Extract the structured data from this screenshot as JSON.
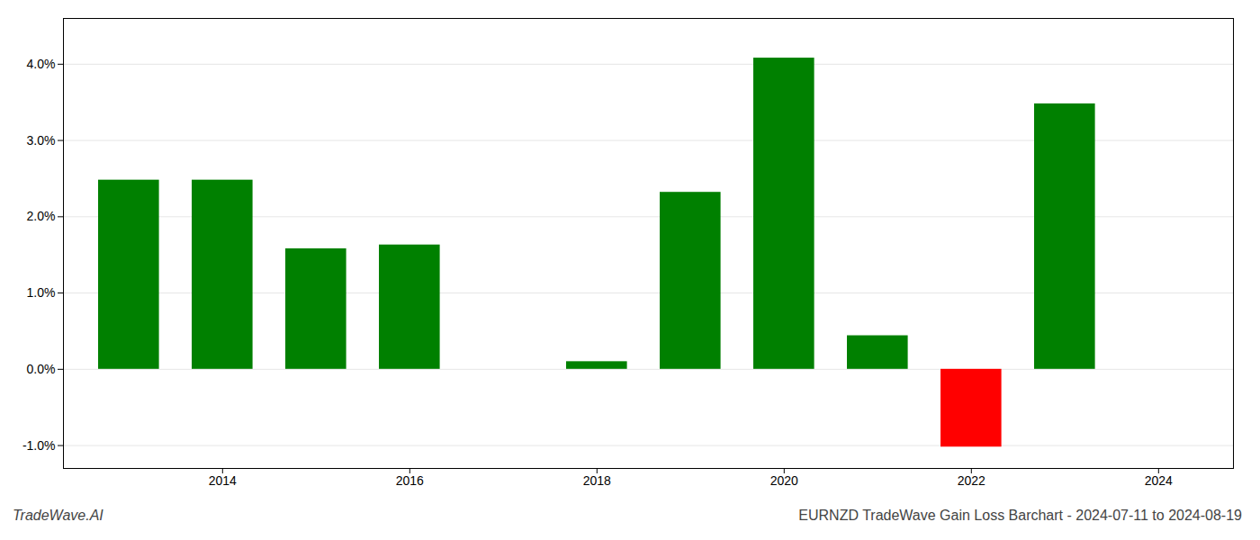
{
  "chart_data": {
    "type": "bar",
    "title": "EURNZD TradeWave Gain Loss Barchart - 2024-07-11 to 2024-08-19",
    "annotations": [
      "TradeWave.AI"
    ],
    "x": [
      2013,
      2014,
      2015,
      2016,
      2018,
      2019,
      2020,
      2021,
      2022,
      2023
    ],
    "values": [
      0.0248,
      0.0248,
      0.0158,
      0.0163,
      0.001,
      0.0232,
      0.0408,
      0.0044,
      -0.0102,
      0.0348
    ],
    "colors": [
      "#008000",
      "#008000",
      "#008000",
      "#008000",
      "#008000",
      "#008000",
      "#008000",
      "#008000",
      "#ff0000",
      "#008000"
    ],
    "xlim": [
      2012.3,
      2024.8
    ],
    "xticks": [
      2014,
      2016,
      2018,
      2020,
      2022,
      2024
    ],
    "ylim": [
      -0.013,
      0.046
    ],
    "yticks": [
      {
        "value": -0.01,
        "label": "-1.0%"
      },
      {
        "value": 0.0,
        "label": "0.0%"
      },
      {
        "value": 0.01,
        "label": "1.0%"
      },
      {
        "value": 0.02,
        "label": "2.0%"
      },
      {
        "value": 0.03,
        "label": "3.0%"
      },
      {
        "value": 0.04,
        "label": "4.0%"
      }
    ],
    "grid": true
  }
}
